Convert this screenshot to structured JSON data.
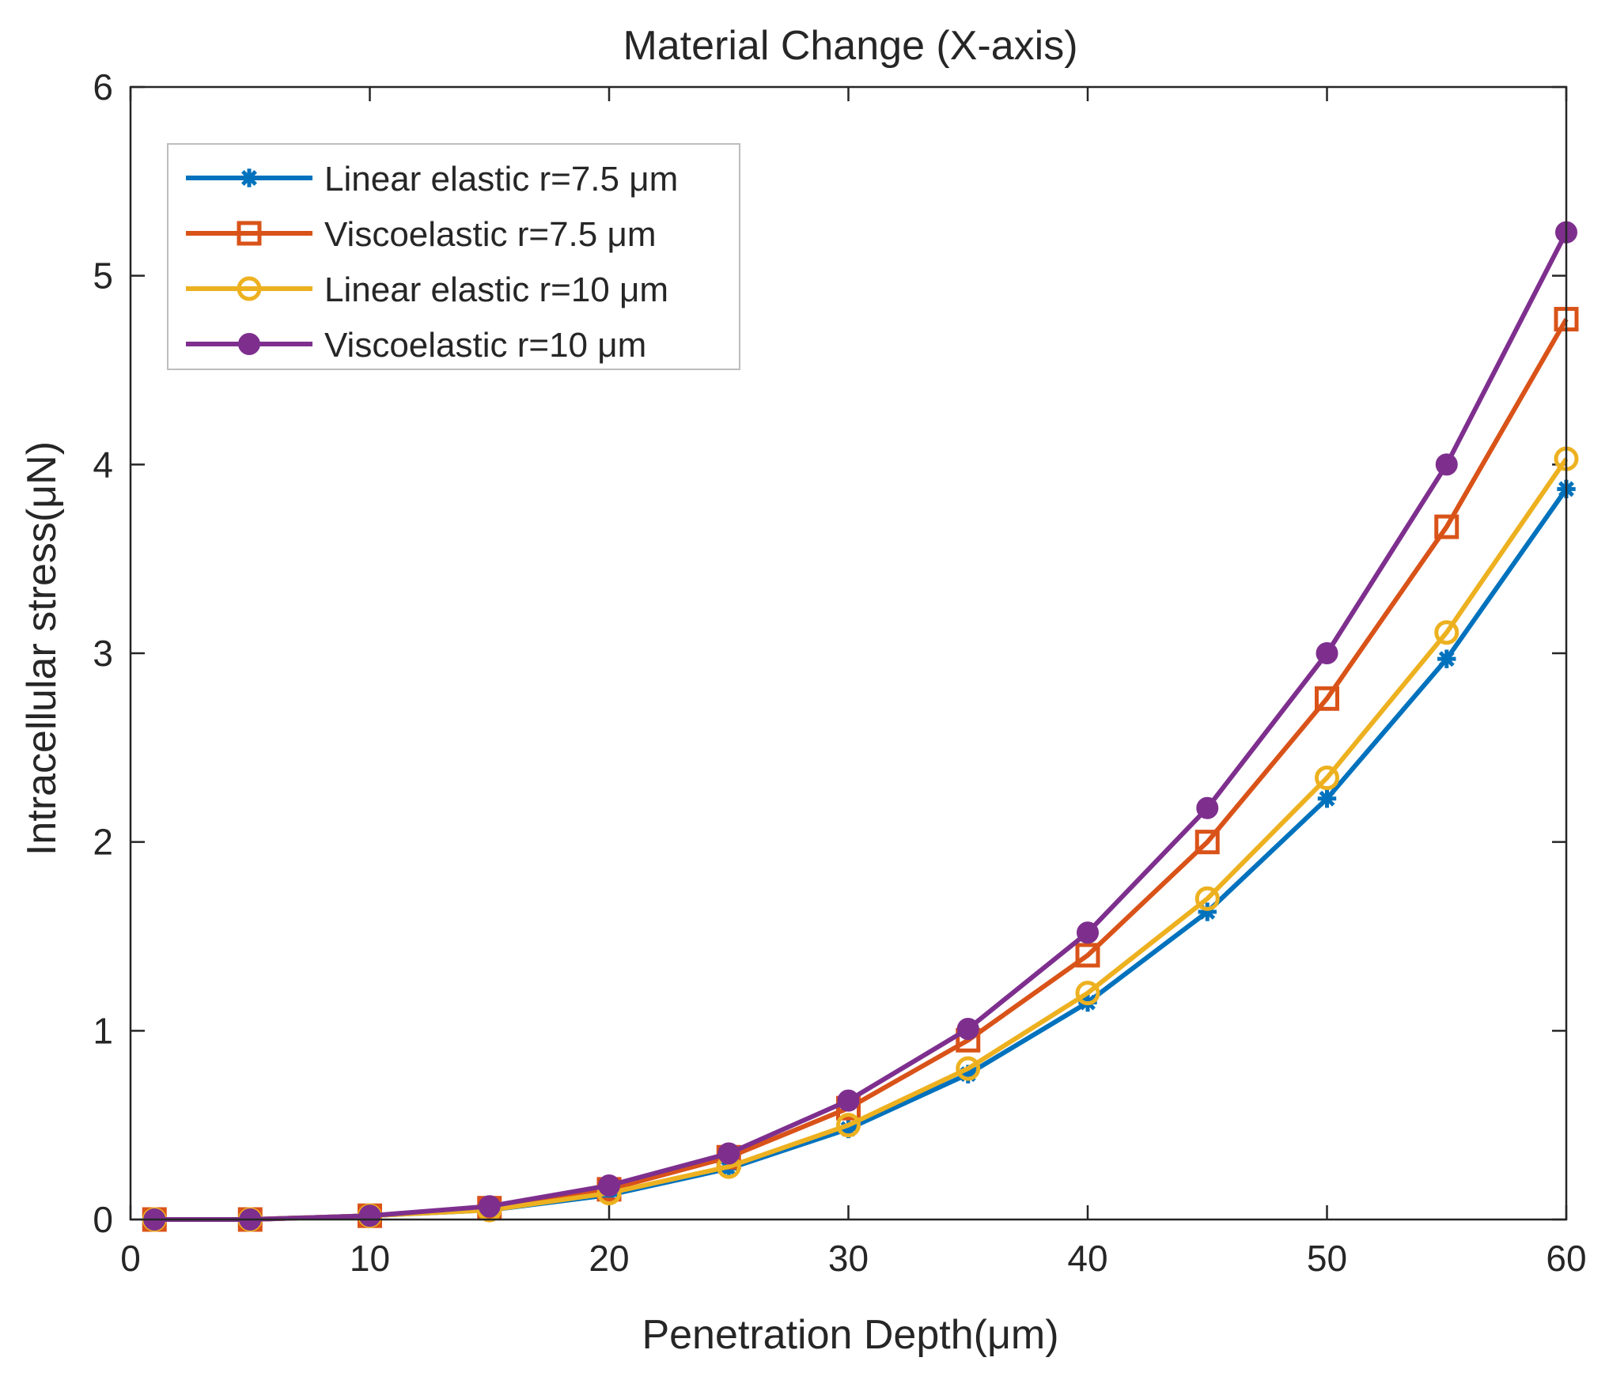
{
  "chart_data": {
    "type": "line",
    "title": "Material Change (X-axis)",
    "xlabel": "Penetration Depth(μm)",
    "ylabel": "Intracellular stress(μN)",
    "xlim": [
      0,
      60
    ],
    "ylim": [
      0,
      6
    ],
    "xticks": [
      0,
      10,
      20,
      30,
      40,
      50,
      60
    ],
    "yticks": [
      0,
      1,
      2,
      3,
      4,
      5,
      6
    ],
    "grid": false,
    "legend_position": "top-left",
    "x": [
      1,
      5,
      10,
      15,
      20,
      25,
      30,
      35,
      40,
      45,
      50,
      55,
      60
    ],
    "series": [
      {
        "name": "Linear elastic r=7.5 μm",
        "color": "#0072BD",
        "marker": "star",
        "values": [
          0.0,
          0.0,
          0.02,
          0.05,
          0.13,
          0.27,
          0.48,
          0.77,
          1.15,
          1.63,
          2.23,
          2.97,
          3.87
        ]
      },
      {
        "name": "Viscoelastic r=7.5 μm",
        "color": "#D95319",
        "marker": "square",
        "values": [
          0.0,
          0.0,
          0.02,
          0.06,
          0.16,
          0.33,
          0.59,
          0.95,
          1.4,
          2.0,
          2.76,
          3.67,
          4.77
        ]
      },
      {
        "name": "Linear elastic r=10 μm",
        "color": "#EDB120",
        "marker": "circle",
        "values": [
          0.0,
          0.0,
          0.02,
          0.05,
          0.14,
          0.28,
          0.5,
          0.8,
          1.2,
          1.7,
          2.34,
          3.11,
          4.03
        ]
      },
      {
        "name": "Viscoelastic r=10 μm",
        "color": "#7E2F8E",
        "marker": "filled-circle",
        "values": [
          0.0,
          0.0,
          0.02,
          0.07,
          0.18,
          0.35,
          0.63,
          1.01,
          1.52,
          2.18,
          3.0,
          4.0,
          5.23
        ]
      }
    ]
  }
}
